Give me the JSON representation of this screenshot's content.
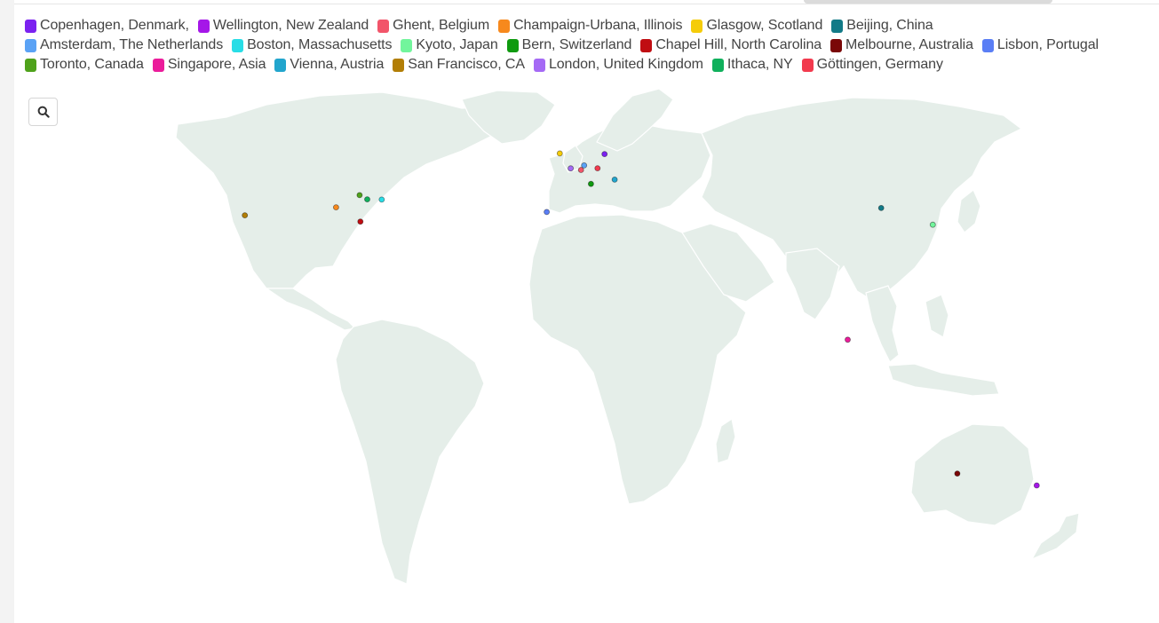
{
  "legend": {
    "items": [
      {
        "label": "Copenhagen, Denmark,",
        "color": "#7b22f0"
      },
      {
        "label": "Wellington, New Zealand",
        "color": "#a517e8"
      },
      {
        "label": "Ghent, Belgium",
        "color": "#f2556a"
      },
      {
        "label": "Champaign-Urbana, Illinois",
        "color": "#f7891d"
      },
      {
        "label": "Glasgow, Scotland",
        "color": "#f5cc09"
      },
      {
        "label": "Beijing, China",
        "color": "#127a87"
      },
      {
        "label": "Amsterdam, The Netherlands",
        "color": "#5aa2f5"
      },
      {
        "label": "Boston, Massachusetts",
        "color": "#28dde6"
      },
      {
        "label": "Kyoto, Japan",
        "color": "#72f59c"
      },
      {
        "label": "Bern, Switzerland",
        "color": "#0f9a0f"
      },
      {
        "label": "Chapel Hill, North Carolina",
        "color": "#c00d12"
      },
      {
        "label": "Melbourne, Australia",
        "color": "#7a0707"
      },
      {
        "label": "Lisbon, Portugal",
        "color": "#5a7ef5"
      },
      {
        "label": "Toronto, Canada",
        "color": "#4fa21b"
      },
      {
        "label": "Singapore, Asia",
        "color": "#eb1c9b"
      },
      {
        "label": "Vienna, Austria",
        "color": "#22a5cd"
      },
      {
        "label": "San Francisco, CA",
        "color": "#b27e06"
      },
      {
        "label": "London, United Kingdom",
        "color": "#a56af5"
      },
      {
        "label": "Ithaca, NY",
        "color": "#10b05c"
      },
      {
        "label": "Göttingen, Germany",
        "color": "#f23a4e"
      }
    ]
  },
  "zoom_control": {
    "icon": "search-icon"
  },
  "map": {
    "land_color": "#e5eee9",
    "markers": [
      {
        "city": "Copenhagen, Denmark,",
        "lat": 55.68,
        "lon": 12.57
      },
      {
        "city": "Wellington, New Zealand",
        "lat": -41.29,
        "lon": 174.78
      },
      {
        "city": "Ghent, Belgium",
        "lat": 51.05,
        "lon": 3.72
      },
      {
        "city": "Champaign-Urbana, Illinois",
        "lat": 40.11,
        "lon": -88.21
      },
      {
        "city": "Glasgow, Scotland",
        "lat": 55.86,
        "lon": -4.25
      },
      {
        "city": "Beijing, China",
        "lat": 39.9,
        "lon": 116.4
      },
      {
        "city": "Amsterdam, The Netherlands",
        "lat": 52.37,
        "lon": 4.9
      },
      {
        "city": "Boston, Massachusetts",
        "lat": 42.36,
        "lon": -71.06
      },
      {
        "city": "Kyoto, Japan",
        "lat": 35.01,
        "lon": 135.77
      },
      {
        "city": "Bern, Switzerland",
        "lat": 46.95,
        "lon": 7.45
      },
      {
        "city": "Chapel Hill, North Carolina",
        "lat": 35.91,
        "lon": -79.06
      },
      {
        "city": "Melbourne, Australia",
        "lat": -37.81,
        "lon": 144.96
      },
      {
        "city": "Lisbon, Portugal",
        "lat": 38.72,
        "lon": -9.14
      },
      {
        "city": "Toronto, Canada",
        "lat": 43.65,
        "lon": -79.38
      },
      {
        "city": "Singapore, Asia",
        "lat": 1.35,
        "lon": 103.82
      },
      {
        "city": "Vienna, Austria",
        "lat": 48.21,
        "lon": 16.37
      },
      {
        "city": "San Francisco, CA",
        "lat": 37.77,
        "lon": -122.42
      },
      {
        "city": "London, United Kingdom",
        "lat": 51.51,
        "lon": -0.13
      },
      {
        "city": "Ithaca, NY",
        "lat": 42.44,
        "lon": -76.5
      },
      {
        "city": "Göttingen, Germany",
        "lat": 51.54,
        "lon": 9.93
      }
    ]
  }
}
